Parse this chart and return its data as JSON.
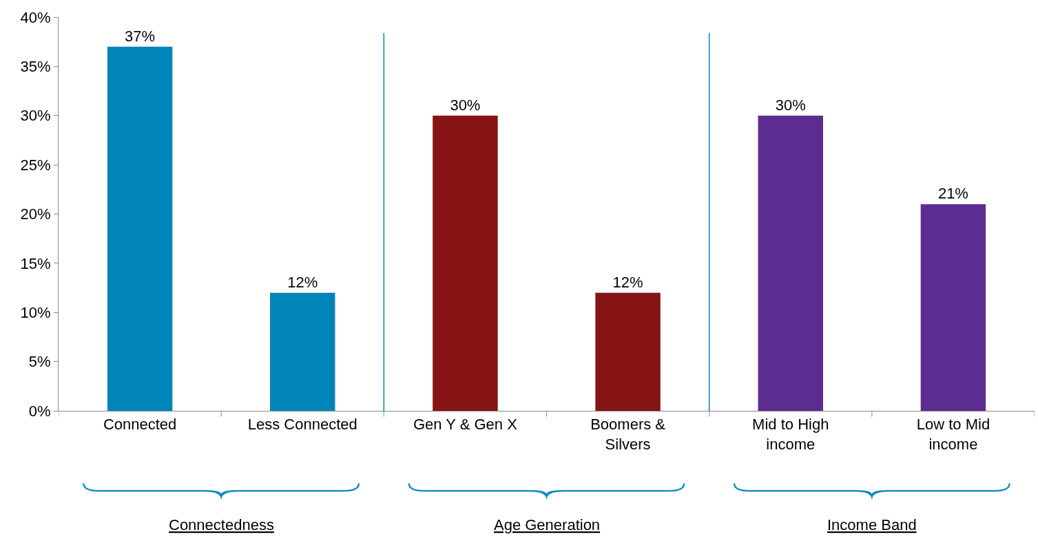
{
  "chart_data": {
    "type": "bar",
    "categories": [
      "Connected",
      "Less Connected",
      "Gen Y & Gen X",
      "Boomers & Silvers",
      "Mid to High income",
      "Low to Mid income"
    ],
    "values": [
      37,
      12,
      30,
      12,
      30,
      21
    ],
    "colors": [
      "#0085b8",
      "#0085b8",
      "#861414",
      "#861414",
      "#5c2d91",
      "#5c2d91"
    ],
    "data_labels": true,
    "value_labels": [
      "37%",
      "12%",
      "30%",
      "12%",
      "30%",
      "21%"
    ],
    "ylim": [
      0,
      40
    ],
    "yticks": [
      {
        "value": 0,
        "label": "0%"
      },
      {
        "value": 5,
        "label": "5%"
      },
      {
        "value": 10,
        "label": "10%"
      },
      {
        "value": 15,
        "label": "15%"
      },
      {
        "value": 20,
        "label": "20%"
      },
      {
        "value": 25,
        "label": "25%"
      },
      {
        "value": 30,
        "label": "30%"
      },
      {
        "value": 35,
        "label": "35%"
      },
      {
        "value": 40,
        "label": "40%"
      }
    ],
    "annotations": [
      "Connectedness",
      "Age Generation",
      "Income Band"
    ]
  }
}
